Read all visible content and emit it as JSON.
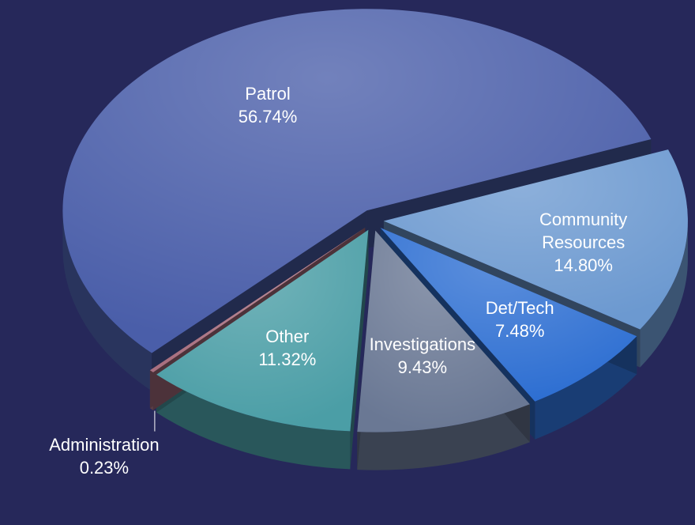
{
  "chart_data": {
    "type": "pie",
    "categories": [
      "Patrol",
      "Community Resources",
      "Det/Tech",
      "Investigations",
      "Other",
      "Administration"
    ],
    "values": [
      56.74,
      14.8,
      7.48,
      9.43,
      11.32,
      0.23
    ],
    "value_labels": [
      "56.74%",
      "14.80%",
      "7.48%",
      "9.43%",
      "11.32%",
      "0.23%"
    ],
    "colors": [
      "#4a5ea9",
      "#6c99d0",
      "#2e6fd2",
      "#6a7894",
      "#4b9ea6",
      "#a87080"
    ]
  }
}
